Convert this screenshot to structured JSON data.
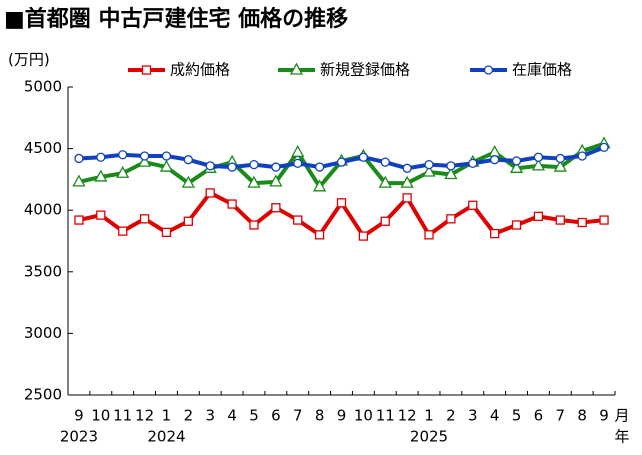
{
  "chart_data": {
    "type": "line",
    "title": "■首都圏 中古戸建住宅 価格の推移",
    "y_label": "(万円)",
    "categories": [
      "9",
      "10",
      "11",
      "12",
      "1",
      "2",
      "3",
      "4",
      "5",
      "6",
      "7",
      "8",
      "9",
      "10",
      "11",
      "12",
      "1",
      "2",
      "3",
      "4",
      "5",
      "6",
      "7",
      "8",
      "9"
    ],
    "year_labels": [
      "2023",
      null,
      null,
      null,
      "2024",
      null,
      null,
      null,
      null,
      null,
      null,
      null,
      null,
      null,
      null,
      null,
      "2025",
      null,
      null,
      null,
      null,
      null,
      null,
      null,
      null
    ],
    "x_unit_month": "月",
    "x_unit_year": "年",
    "series": [
      {
        "name": "成約価格",
        "color": "#e00000",
        "marker": "square",
        "values": [
          3920,
          3960,
          3830,
          3930,
          3820,
          3910,
          4140,
          4050,
          3880,
          4020,
          3920,
          3800,
          4060,
          3790,
          3910,
          4100,
          3800,
          3930,
          4040,
          3810,
          3880,
          3950,
          3920,
          3900,
          3920
        ]
      },
      {
        "name": "新規登録価格",
        "color": "#1a8a1a",
        "marker": "triangle",
        "values": [
          4230,
          4270,
          4300,
          4390,
          4350,
          4220,
          4340,
          4390,
          4220,
          4230,
          4470,
          4190,
          4400,
          4440,
          4220,
          4220,
          4310,
          4290,
          4390,
          4470,
          4340,
          4360,
          4350,
          4480,
          4540
        ]
      },
      {
        "name": "在庫価格",
        "color": "#1040c0",
        "marker": "circle",
        "values": [
          4420,
          4430,
          4450,
          4440,
          4440,
          4410,
          4360,
          4350,
          4370,
          4350,
          4380,
          4350,
          4390,
          4430,
          4390,
          4340,
          4370,
          4360,
          4380,
          4410,
          4400,
          4430,
          4420,
          4440,
          4510
        ]
      }
    ],
    "ylim": [
      2500,
      5000
    ],
    "yticks": [
      2500,
      3000,
      3500,
      4000,
      4500,
      5000
    ],
    "legend": "top"
  }
}
